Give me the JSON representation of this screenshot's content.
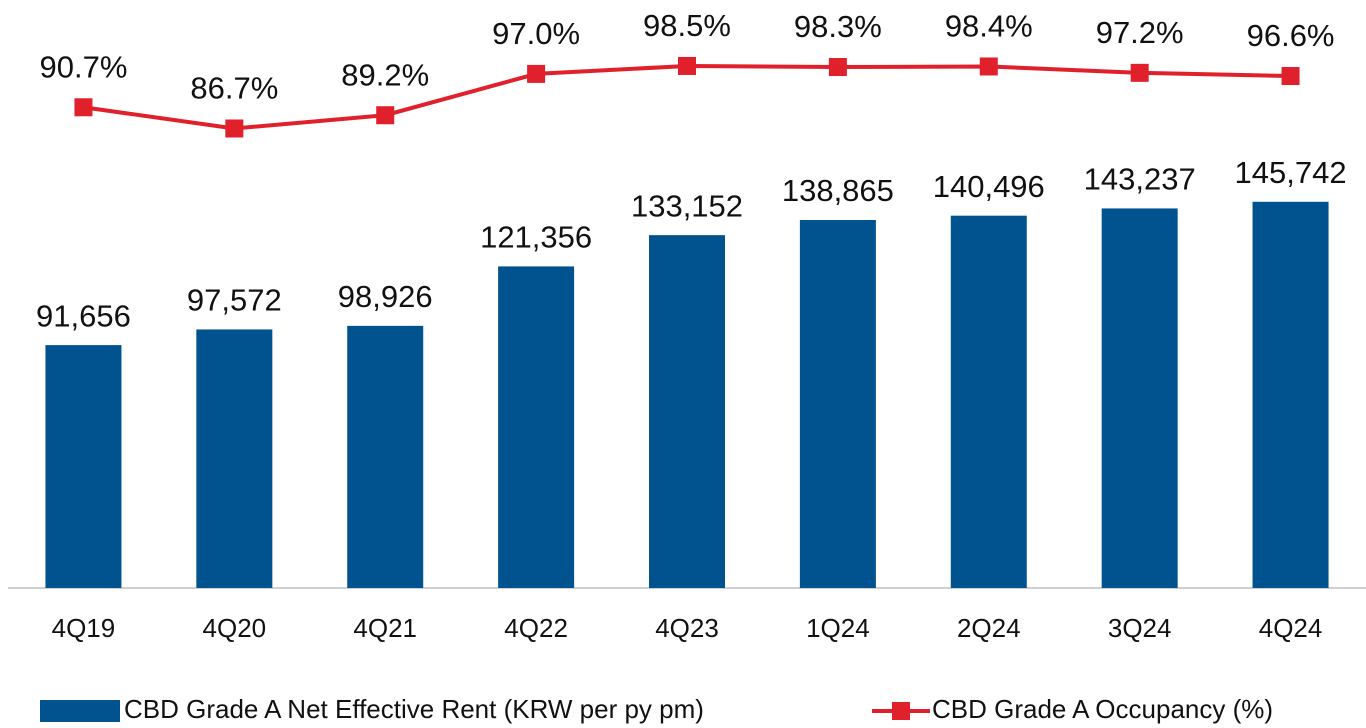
{
  "chart_data": {
    "type": "bar",
    "categories": [
      "4Q19",
      "4Q20",
      "4Q21",
      "4Q22",
      "4Q23",
      "1Q24",
      "2Q24",
      "3Q24",
      "4Q24"
    ],
    "ylim": [
      0,
      220000
    ],
    "y2lim": [
      0,
      110
    ],
    "series": [
      {
        "name": "CBD Grade A Net Effective Rent (KRW per py pm)",
        "type": "bar",
        "color": "#00538f",
        "values": [
          91656,
          97572,
          98926,
          121356,
          133152,
          138865,
          140496,
          143237,
          145742
        ],
        "value_labels": [
          "91,656",
          "97,572",
          "98,926",
          "121,356",
          "133,152",
          "138,865",
          "140,496",
          "143,237",
          "145,742"
        ]
      },
      {
        "name": "CBD Grade A Occupancy (%)",
        "type": "line",
        "axis": "y2",
        "color": "#e0202b",
        "values": [
          90.7,
          86.7,
          89.2,
          97.0,
          98.5,
          98.3,
          98.4,
          97.2,
          96.6
        ],
        "value_labels": [
          "90.7%",
          "86.7%",
          "89.2%",
          "97.0%",
          "98.5%",
          "98.3%",
          "98.4%",
          "97.2%",
          "96.6%"
        ]
      }
    ]
  }
}
